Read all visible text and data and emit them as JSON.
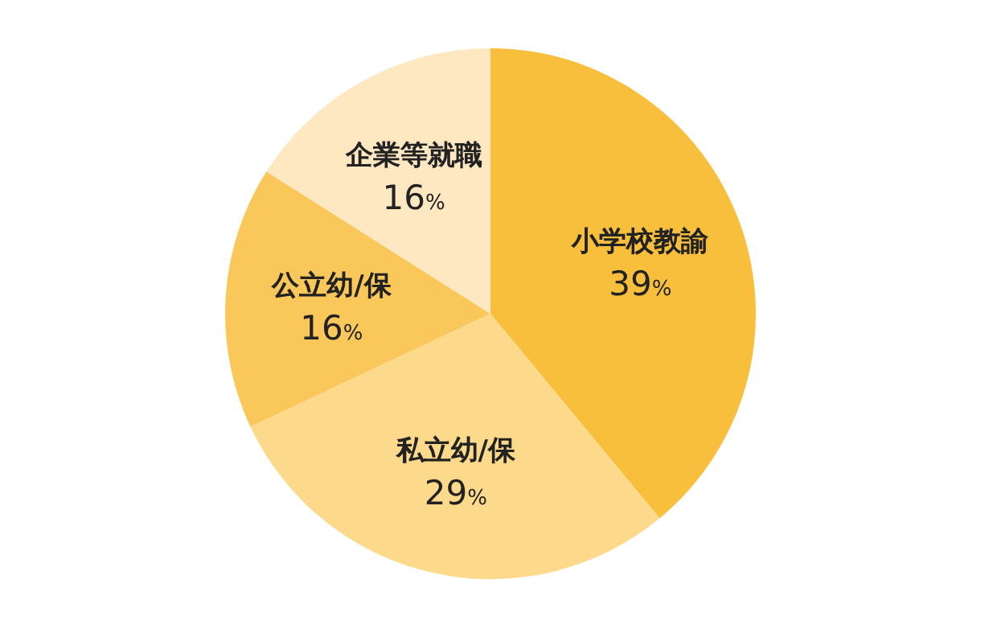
{
  "chart_data": {
    "type": "pie",
    "categories": [
      "小学校教諭",
      "私立幼/保",
      "公立幼/保",
      "企業等就職"
    ],
    "values": [
      39,
      29,
      16,
      16
    ],
    "colors": [
      "#f8bf3d",
      "#fcd98b",
      "#f9c75a",
      "#fde8c2"
    ],
    "value_labels": [
      "39%",
      "29%",
      "16%",
      "16%"
    ]
  }
}
